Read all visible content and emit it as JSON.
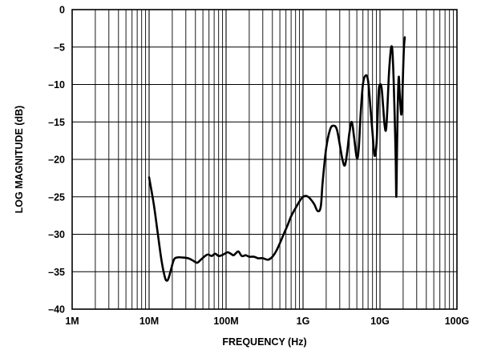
{
  "chart_data": {
    "type": "line",
    "title": "",
    "xlabel": "FREQUENCY (Hz)",
    "ylabel": "LOG MAGNITUDE (dB)",
    "x_scale": "log",
    "xlim": [
      1000000,
      100000000000
    ],
    "ylim": [
      -40,
      0
    ],
    "grid": true,
    "x_tick_values": [
      1000000,
      10000000,
      100000000,
      1000000000,
      10000000000,
      100000000000
    ],
    "x_tick_labels": [
      "1M",
      "10M",
      "100M",
      "1G",
      "10G",
      "100G"
    ],
    "y_tick_values": [
      0,
      -5,
      -10,
      -15,
      -20,
      -25,
      -30,
      -35,
      -40
    ],
    "y_tick_labels": [
      "0",
      "–5",
      "–10",
      "–15",
      "–20",
      "–25",
      "–30",
      "–35",
      "–40"
    ],
    "series": [
      {
        "color": "#000000",
        "x": [
          10000000,
          11500000,
          13000000,
          14500000,
          16000000,
          17000000,
          18000000,
          19500000,
          21000000,
          23000000,
          27000000,
          32000000,
          37000000,
          42000000,
          47000000,
          52000000,
          58000000,
          65000000,
          72000000,
          80000000,
          88000000,
          96000000,
          105000000,
          115000000,
          125000000,
          135000000,
          145000000,
          160000000,
          180000000,
          200000000,
          230000000,
          260000000,
          300000000,
          350000000,
          400000000,
          450000000,
          500000000,
          560000000,
          630000000,
          700000000,
          800000000,
          900000000,
          1000000000,
          1120000000,
          1250000000,
          1400000000,
          1550000000,
          1700000000,
          1800000000,
          2000000000,
          2250000000,
          2500000000,
          2750000000,
          3000000000,
          3250000000,
          3500000000,
          3750000000,
          4000000000,
          4300000000,
          4600000000,
          5000000000,
          5300000000,
          5600000000,
          6000000000,
          6500000000,
          7000000000,
          7500000000,
          8000000000,
          8500000000,
          9000000000,
          9300000000,
          9600000000,
          10000000000,
          10500000000,
          11000000000,
          11500000000,
          12000000000,
          12500000000,
          13000000000,
          13500000000,
          14000000000,
          14500000000,
          15000000000,
          15500000000,
          16000000000,
          16300000000,
          16600000000,
          17000000000,
          17500000000,
          18000000000,
          18500000000,
          19000000000,
          19500000000,
          20000000000,
          20500000000,
          21000000000
        ],
        "y": [
          -22.4,
          -26.0,
          -30.0,
          -33.5,
          -35.7,
          -36.2,
          -35.8,
          -34.5,
          -33.4,
          -33.1,
          -33.1,
          -33.2,
          -33.5,
          -33.8,
          -33.4,
          -33.0,
          -32.7,
          -32.9,
          -32.6,
          -32.9,
          -32.8,
          -32.6,
          -32.4,
          -32.6,
          -32.8,
          -32.5,
          -32.3,
          -32.9,
          -32.8,
          -33.0,
          -33.0,
          -33.2,
          -33.2,
          -33.4,
          -33.0,
          -32.2,
          -31.2,
          -30.0,
          -28.8,
          -27.6,
          -26.5,
          -25.6,
          -25.0,
          -24.9,
          -25.3,
          -26.0,
          -26.9,
          -26.3,
          -23.0,
          -18.5,
          -16.0,
          -15.5,
          -16.0,
          -18.0,
          -20.0,
          -20.8,
          -19.0,
          -16.5,
          -15.0,
          -17.0,
          -19.8,
          -18.5,
          -14.0,
          -10.0,
          -8.8,
          -9.5,
          -13.0,
          -16.5,
          -19.5,
          -18.0,
          -14.5,
          -11.0,
          -10.0,
          -10.5,
          -13.0,
          -15.5,
          -16.0,
          -13.0,
          -9.0,
          -6.5,
          -5.0,
          -5.5,
          -9.0,
          -14.0,
          -20.0,
          -25.0,
          -19.5,
          -13.0,
          -9.0,
          -11.0,
          -13.0,
          -14.0,
          -12.0,
          -8.0,
          -5.0,
          -3.7
        ]
      }
    ]
  }
}
